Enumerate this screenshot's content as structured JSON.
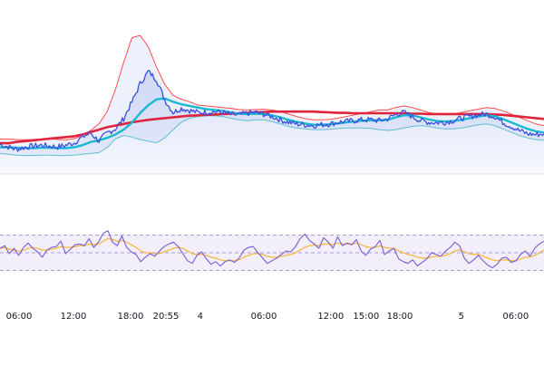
{
  "chart_data": [
    {
      "type": "line",
      "panel": "price",
      "series": [
        {
          "values": [
            172,
            166,
            160,
            165,
            168,
            170,
            168,
            166,
            170,
            176,
            190,
            200,
            180,
            200,
            210,
            235,
            275,
            320,
            350,
            330,
            280,
            250,
            260,
            255,
            250,
            250,
            252,
            250,
            245,
            244,
            248,
            250,
            246,
            240,
            232,
            226,
            222,
            220,
            218,
            220,
            222,
            226,
            228,
            230,
            232,
            232,
            230,
            234,
            245,
            250,
            240,
            230,
            226,
            225,
            226,
            230,
            236,
            240,
            244,
            246,
            240,
            226,
            216,
            206,
            198,
            196,
            198
          ]
        },
        {
          "values": [
            165,
            165,
            164,
            163,
            163,
            164,
            164,
            163,
            163,
            165,
            170,
            178,
            182,
            188,
            196,
            208,
            225,
            248,
            268,
            282,
            284,
            276,
            270,
            266,
            262,
            258,
            256,
            254,
            250,
            247,
            246,
            247,
            246,
            243,
            238,
            232,
            227,
            223,
            220,
            220,
            221,
            223,
            226,
            228,
            230,
            231,
            231,
            232,
            238,
            243,
            243,
            238,
            233,
            229,
            228,
            229,
            232,
            236,
            240,
            243,
            241,
            234,
            226,
            218,
            210,
            204,
            201
          ]
        },
        {
          "values": [
            175,
            175,
            178,
            180,
            182,
            184,
            186,
            188,
            190,
            192,
            196,
            202,
            208,
            214,
            218,
            222,
            226,
            229,
            232,
            234,
            236,
            238,
            240,
            242,
            243,
            244,
            245,
            246,
            247,
            248,
            249,
            250,
            251,
            252,
            252,
            252,
            252,
            252,
            252,
            251,
            250,
            249,
            249,
            248,
            248,
            248,
            248,
            248,
            248,
            248,
            247,
            247,
            246,
            246,
            246,
            246,
            246,
            246,
            246,
            246,
            245,
            244,
            242,
            240,
            238,
            236,
            234
          ]
        }
      ],
      "bands": {
        "upper": [
          185,
          185,
          184,
          183,
          184,
          185,
          186,
          184,
          183,
          186,
          194,
          206,
          222,
          252,
          306,
          372,
          432,
          438,
          410,
          360,
          318,
          292,
          282,
          276,
          268,
          266,
          264,
          262,
          260,
          257,
          256,
          257,
          258,
          256,
          252,
          246,
          240,
          235,
          232,
          232,
          233,
          236,
          240,
          244,
          248,
          252,
          256,
          256,
          262,
          266,
          262,
          256,
          250,
          246,
          244,
          246,
          250,
          254,
          258,
          262,
          260,
          254,
          246,
          238,
          230,
          222,
          218
        ],
        "lower": [
          150,
          148,
          146,
          145,
          145,
          146,
          146,
          145,
          145,
          146,
          148,
          150,
          152,
          164,
          186,
          194,
          190,
          184,
          180,
          176,
          188,
          208,
          226,
          236,
          240,
          242,
          242,
          240,
          236,
          232,
          230,
          232,
          232,
          228,
          222,
          216,
          212,
          210,
          208,
          208,
          209,
          211,
          212,
          212,
          212,
          211,
          208,
          206,
          208,
          212,
          216,
          218,
          216,
          212,
          210,
          210,
          212,
          216,
          220,
          222,
          218,
          210,
          202,
          194,
          188,
          184,
          182
        ]
      },
      "colors": {
        "price": "#3b4fe0",
        "fast_ma": "#1ab8d4",
        "slow_ma": "#e0243c",
        "band": "#ff4d4d"
      },
      "ylim": [
        100,
        480
      ]
    },
    {
      "type": "line",
      "panel": "oscillator",
      "series": [
        {
          "values": [
            55,
            58,
            49,
            55,
            47,
            56,
            61,
            55,
            51,
            45,
            53,
            56,
            57,
            63,
            49,
            54,
            59,
            60,
            58,
            66,
            56,
            62,
            72,
            75,
            62,
            58,
            69,
            56,
            51,
            48,
            40,
            45,
            49,
            46,
            52,
            57,
            60,
            62,
            57,
            49,
            41,
            38,
            47,
            51,
            43,
            37,
            40,
            35,
            40,
            42,
            39,
            44,
            53,
            56,
            57,
            50,
            44,
            38,
            41,
            44,
            48,
            52,
            51,
            57,
            66,
            71,
            64,
            60,
            55,
            67,
            62,
            55,
            68,
            58,
            61,
            59,
            65,
            52,
            47,
            54,
            57,
            64,
            48,
            52,
            55,
            43,
            40,
            38,
            42,
            35,
            39,
            43,
            50,
            48,
            46,
            52,
            56,
            62,
            58,
            44,
            38,
            42,
            47,
            41,
            36,
            33,
            37,
            44,
            45,
            39,
            41,
            48,
            52,
            46,
            55,
            60,
            63
          ]
        },
        {
          "values": [
            55,
            56,
            54,
            53,
            52,
            53,
            55,
            56,
            55,
            53,
            53,
            54,
            55,
            57,
            56,
            56,
            57,
            58,
            58,
            60,
            59,
            60,
            63,
            66,
            65,
            63,
            64,
            62,
            59,
            56,
            52,
            50,
            50,
            49,
            49,
            51,
            53,
            55,
            56,
            55,
            52,
            49,
            48,
            48,
            47,
            45,
            44,
            42,
            41,
            41,
            41,
            42,
            45,
            47,
            49,
            49,
            48,
            46,
            45,
            45,
            46,
            47,
            48,
            50,
            53,
            56,
            58,
            59,
            58,
            60,
            60,
            59,
            61,
            60,
            60,
            60,
            61,
            59,
            57,
            56,
            56,
            58,
            56,
            55,
            55,
            52,
            50,
            48,
            47,
            45,
            44,
            44,
            45,
            46,
            46,
            47,
            49,
            52,
            53,
            51,
            49,
            48,
            48,
            46,
            44,
            42,
            41,
            42,
            42,
            41,
            41,
            43,
            45,
            45,
            47,
            50,
            53
          ]
        }
      ],
      "levels": [
        70,
        50,
        30
      ],
      "ylim": [
        10,
        90
      ],
      "colors": {
        "value": "#7a5cd6",
        "signal": "#f5b942",
        "band_fill": "#ede8f8",
        "level": "#9a86d4"
      }
    }
  ],
  "x_axis": {
    "ticks": [
      {
        "label": "06:00",
        "f": 0.035
      },
      {
        "label": "12:00",
        "f": 0.135
      },
      {
        "label": "18:00",
        "f": 0.24
      },
      {
        "label": "20:55",
        "f": 0.305
      },
      {
        "label": "4",
        "f": 0.368
      },
      {
        "label": "06:00",
        "f": 0.485
      },
      {
        "label": "12:00",
        "f": 0.608
      },
      {
        "label": "15:00",
        "f": 0.673
      },
      {
        "label": "18:00",
        "f": 0.735
      },
      {
        "label": "5",
        "f": 0.848
      },
      {
        "label": "06:00",
        "f": 0.948
      }
    ]
  }
}
